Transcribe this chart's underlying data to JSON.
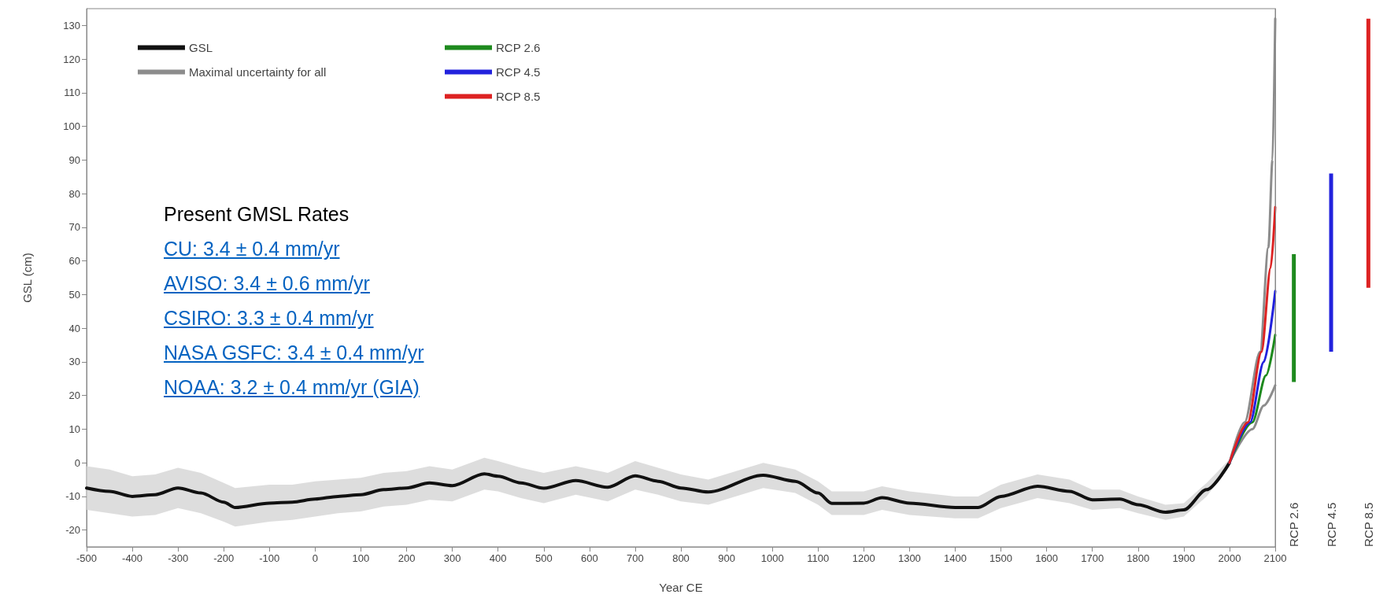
{
  "chart_data": [
    {
      "type": "line",
      "xlabel": "Year CE",
      "ylabel": "GSL (cm)",
      "xlim": [
        -500,
        2100
      ],
      "ylim": [
        -25,
        135
      ],
      "xticks": [
        -500,
        -400,
        -300,
        -200,
        -100,
        0,
        100,
        200,
        300,
        400,
        500,
        600,
        700,
        800,
        900,
        1000,
        1100,
        1200,
        1300,
        1400,
        1500,
        1600,
        1700,
        1800,
        1900,
        2000,
        2100
      ],
      "yticks": [
        -20,
        -10,
        0,
        10,
        20,
        30,
        40,
        50,
        60,
        70,
        80,
        90,
        100,
        110,
        120,
        130
      ],
      "legend": "top left",
      "marker": "none",
      "line_style": "solid",
      "grid": false,
      "annotations": [
        "Present GMSL Rates",
        "CU: 3.4 ± 0.4 mm/yr",
        "AVISO: 3.4 ± 0.6 mm/yr",
        "CSIRO: 3.3 ± 0.4 mm/yr",
        "NASA GSFC: 3.4 ± 0.4 mm/yr",
        "NOAA: 3.2 ± 0.4 mm/yr (GIA)"
      ],
      "series": [
        {
          "name": "GSL",
          "color": "#111111",
          "x": [
            -500,
            -450,
            -400,
            -350,
            -300,
            -250,
            -200,
            -175,
            -100,
            -50,
            0,
            50,
            100,
            150,
            200,
            250,
            300,
            370,
            400,
            450,
            500,
            570,
            640,
            700,
            750,
            800,
            860,
            980,
            1050,
            1100,
            1130,
            1200,
            1240,
            1300,
            1400,
            1450,
            1500,
            1580,
            1650,
            1700,
            1760,
            1800,
            1860,
            1900,
            1950,
            2000
          ],
          "values": [
            -7.5,
            -8.5,
            -10,
            -9.5,
            -7.5,
            -9,
            -11.7,
            -13.3,
            -12,
            -11.7,
            -10.8,
            -10,
            -9.5,
            -8,
            -7.5,
            -6,
            -6.8,
            -3.3,
            -4,
            -6,
            -7.6,
            -5.3,
            -7.3,
            -3.9,
            -5.5,
            -7.5,
            -8.7,
            -3.7,
            -5.5,
            -9,
            -12.1,
            -12,
            -10.4,
            -12,
            -13.3,
            -13.3,
            -10,
            -7,
            -8.5,
            -11,
            -10.8,
            -12.5,
            -14.7,
            -14,
            -8,
            0
          ],
          "lower": [
            -14,
            -15,
            -16,
            -15.5,
            -13.5,
            -15,
            -17.5,
            -19,
            -17.5,
            -17,
            -16,
            -15,
            -14.5,
            -13,
            -12.5,
            -11,
            -11.5,
            -8,
            -8.5,
            -10.5,
            -12,
            -9.5,
            -11.5,
            -8,
            -9.5,
            -11.5,
            -12.5,
            -7.5,
            -9,
            -12.5,
            -15.5,
            -15.5,
            -14,
            -15.5,
            -16.5,
            -16.5,
            -13.5,
            -10.5,
            -12,
            -14,
            -13.5,
            -15,
            -17,
            -16,
            -10,
            -1
          ],
          "upper": [
            -1,
            -2,
            -4,
            -3.5,
            -1.5,
            -3,
            -6,
            -7.5,
            -6.5,
            -6.5,
            -5.5,
            -5,
            -4.5,
            -3,
            -2.5,
            -1,
            -2,
            1.5,
            0.5,
            -1.5,
            -3,
            -1,
            -3,
            0.5,
            -1.5,
            -3.5,
            -5,
            0,
            -2,
            -5.5,
            -8.5,
            -8.5,
            -7,
            -8.5,
            -10,
            -10,
            -6.5,
            -3.5,
            -5,
            -8,
            -8,
            -10,
            -12.5,
            -12,
            -6,
            1
          ]
        },
        {
          "name": "Maximal uncertainty for all",
          "color": "#8c8c8c",
          "x": [
            2000,
            2033,
            2067,
            2085,
            2094,
            2100
          ],
          "values": [
            0,
            12,
            33,
            64,
            90,
            132
          ]
        },
        {
          "color": "#8c8c8c",
          "x": [
            2000,
            2050,
            2075,
            2100
          ],
          "values": [
            0,
            10,
            17,
            23
          ]
        },
        {
          "name": "RCP 2.6",
          "color": "#1e8a1e",
          "x": [
            2000,
            2050,
            2080,
            2100
          ],
          "values": [
            0,
            12,
            26,
            38
          ]
        },
        {
          "name": "RCP 4.5",
          "color": "#2222dd",
          "x": [
            2000,
            2045,
            2075,
            2100
          ],
          "values": [
            0,
            12,
            30,
            51
          ]
        },
        {
          "name": "RCP 8.5",
          "color": "#dd2222",
          "x": [
            2000,
            2040,
            2070,
            2090,
            2100
          ],
          "values": [
            0,
            12,
            33,
            58,
            76
          ]
        }
      ]
    },
    {
      "type": "bar",
      "categories": [
        "RCP 2.6",
        "RCP 4.5",
        "RCP 8.5"
      ],
      "base": [
        24,
        33,
        52
      ],
      "values": [
        38,
        53,
        80
      ],
      "colors": [
        "#1e8a1e",
        "#2222dd",
        "#dd2222"
      ],
      "ylim": [
        -25,
        135
      ],
      "tick_labels": "x"
    }
  ]
}
